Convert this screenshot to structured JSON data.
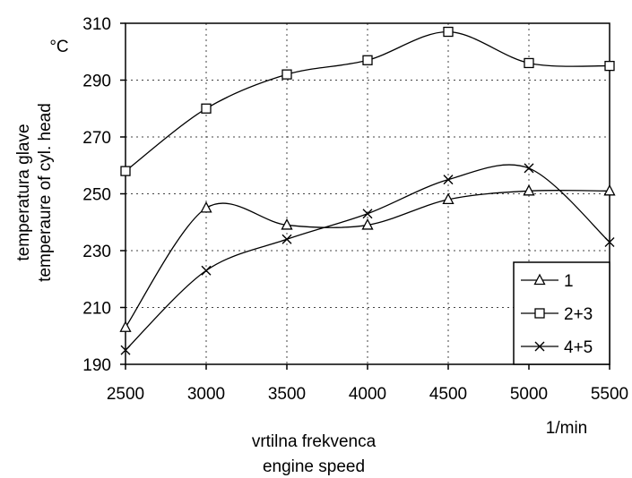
{
  "chart_data": {
    "type": "line",
    "x": [
      2500,
      3000,
      3500,
      4000,
      4500,
      5000,
      5500
    ],
    "xlim": [
      2500,
      5500
    ],
    "ylim": [
      190,
      310
    ],
    "xticks": [
      "2500",
      "3000",
      "3500",
      "4000",
      "4500",
      "5000",
      "5500"
    ],
    "yticks": [
      "190",
      "210",
      "230",
      "250",
      "270",
      "290",
      "310"
    ],
    "xlabel": "vrtilna frekvenca",
    "xlabel2": "engine speed",
    "xunit": "1/min",
    "ylabel": "temperatura glave",
    "ylabel2": "temperaure of cyl. head",
    "yunit": "°C",
    "grid": true,
    "legend_position": "bottom-right",
    "series": [
      {
        "name": "1",
        "marker": "triangle",
        "values": [
          203,
          245,
          239,
          239,
          248,
          251,
          251
        ]
      },
      {
        "name": "2+3",
        "marker": "square",
        "values": [
          258,
          280,
          292,
          297,
          307,
          296,
          295
        ]
      },
      {
        "name": "4+5",
        "marker": "cross",
        "values": [
          195,
          223,
          234,
          243,
          255,
          259,
          233
        ]
      }
    ]
  }
}
